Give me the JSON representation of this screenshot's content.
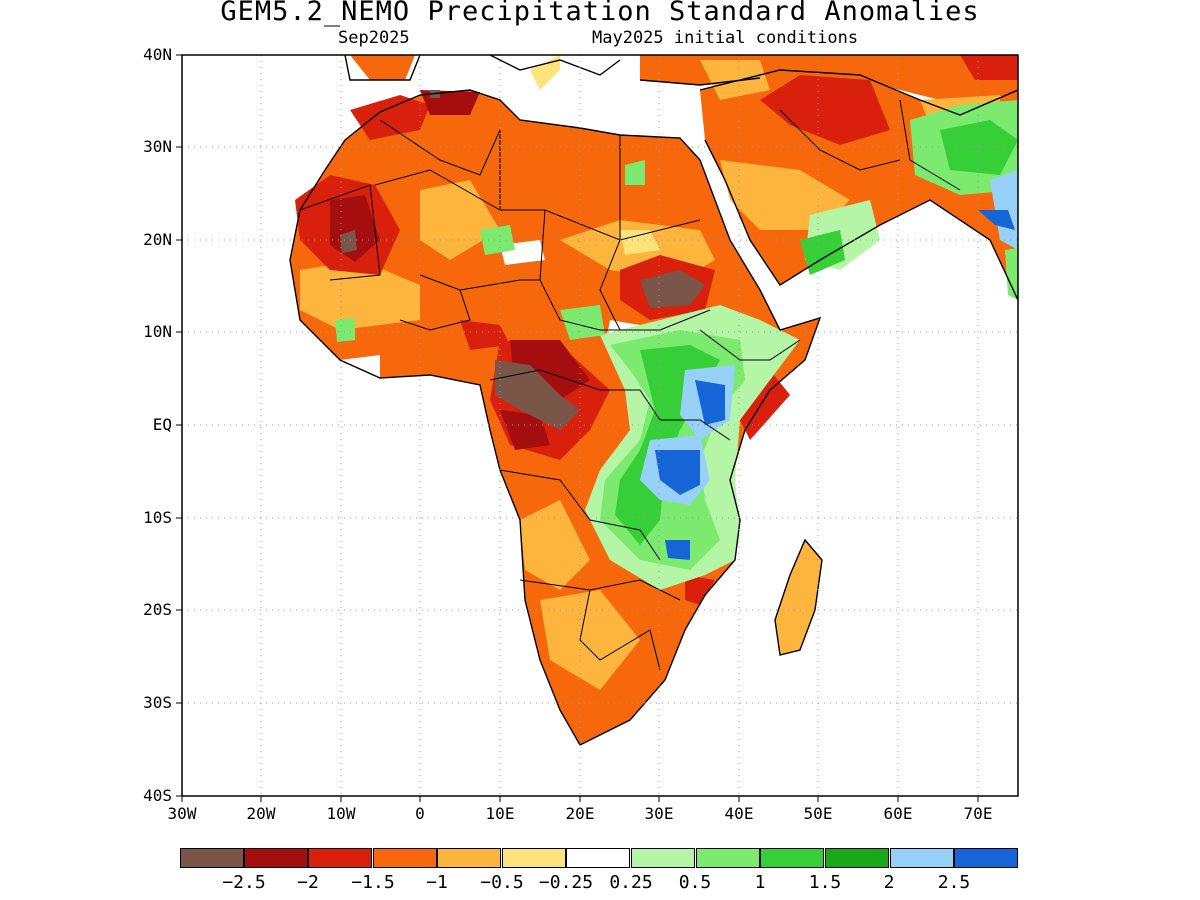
{
  "title": "GEM5.2_NEMO Precipitation Standard Anomalies",
  "subtitle_left": "Sep2025",
  "subtitle_right": "May2025 initial conditions",
  "lat_labels": [
    "40N",
    "30N",
    "20N",
    "10N",
    "EQ",
    "10S",
    "20S",
    "30S",
    "40S"
  ],
  "lon_labels": [
    "30W",
    "20W",
    "10W",
    "0",
    "10E",
    "20E",
    "30E",
    "40E",
    "50E",
    "60E",
    "70E"
  ],
  "colorbar": {
    "colors": [
      "#7a5649",
      "#a50e0e",
      "#d9200c",
      "#f7680c",
      "#fdb53d",
      "#fee27c",
      "#ffffff",
      "#b4f5a6",
      "#7bea6e",
      "#36cf38",
      "#18a81a",
      "#98d1f7",
      "#1565d6"
    ],
    "labels": [
      "−2.5",
      "−2",
      "−1.5",
      "−1",
      "−0.5",
      "−0.25",
      "0.25",
      "0.5",
      "1",
      "1.5",
      "2",
      "2.5"
    ]
  },
  "legend_levels": [
    -2.5,
    -2,
    -1.5,
    -1,
    -0.5,
    -0.25,
    0.25,
    0.5,
    1,
    1.5,
    2,
    2.5
  ],
  "map": {
    "lon_range": [
      -30,
      75
    ],
    "lat_range": [
      -40,
      40
    ],
    "grid_interval_deg": 10
  }
}
